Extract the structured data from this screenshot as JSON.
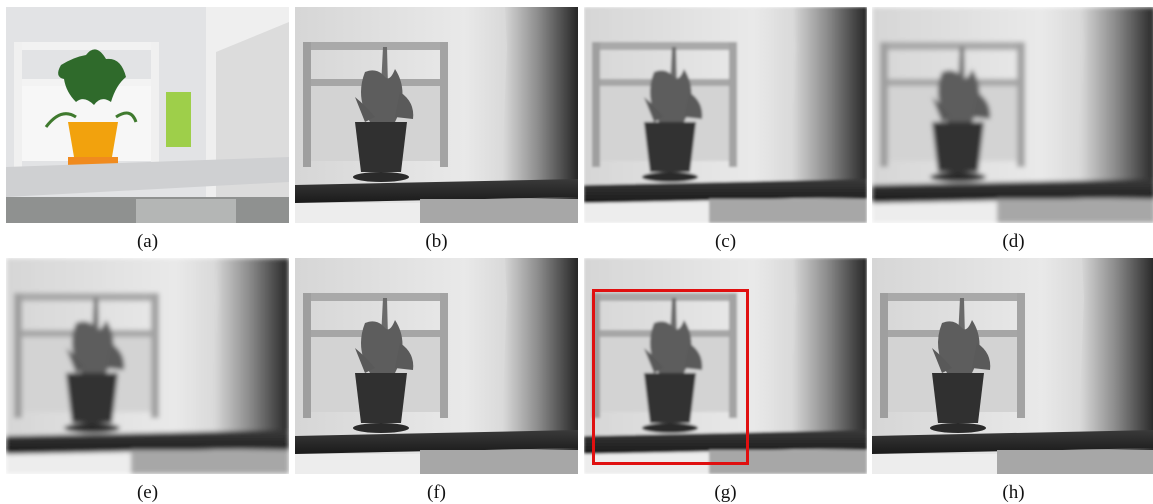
{
  "figure": {
    "panels": [
      {
        "id": "a",
        "caption": "(a)",
        "kind": "rgb-photo",
        "description": "potted plant on white shelf"
      },
      {
        "id": "b",
        "caption": "(b)",
        "kind": "depth-map"
      },
      {
        "id": "c",
        "caption": "(c)",
        "kind": "depth-map"
      },
      {
        "id": "d",
        "caption": "(d)",
        "kind": "depth-map"
      },
      {
        "id": "e",
        "caption": "(e)",
        "kind": "depth-map"
      },
      {
        "id": "f",
        "caption": "(f)",
        "kind": "depth-map"
      },
      {
        "id": "g",
        "caption": "(g)",
        "kind": "depth-map",
        "highlight": true
      },
      {
        "id": "h",
        "caption": "(h)",
        "kind": "depth-map"
      }
    ],
    "highlight_color": "#e01010"
  }
}
